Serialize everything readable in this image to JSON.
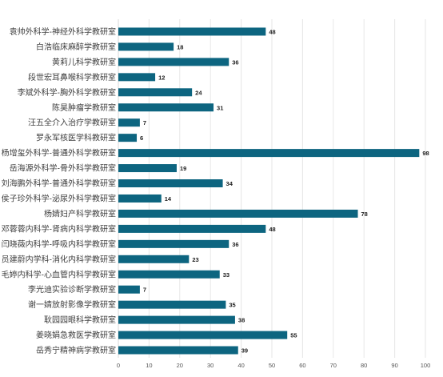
{
  "chart_data": {
    "type": "bar",
    "orientation": "horizontal",
    "categories": [
      "袁帅外科学-神经外科学教研室",
      "白浩临床麻醉学教研室",
      "黄莉儿科学教研室",
      "段世宏耳鼻喉科学教研室",
      "李斌外科学-胸外科学教研室",
      "陈昊肿瘤学教研室",
      "汪五全介入治疗学教研室",
      "罗永军核医学科教研室",
      "杨增玺外科学-普通外科学教研室",
      "岳海源外科学-骨外科学教研室",
      "刘海鹏外科学-普通外科学教研室",
      "侯子珍外科学-泌尿外科学教研室",
      "杨婧妇产科学教研室",
      "邓蓉蓉内科学-肾病内科学教研室",
      "闫晓薇内科学-呼吸内科学教研室",
      "员建蔚内学科-消化内科学教研室",
      "毛婷内科学-心血管内科学教研室",
      "李光迪实验诊断学教研室",
      "谢一婧放射影像学教研室",
      "耿园园眼科学教研室",
      "姜晓娟急救医学教研室",
      "岳秀宁精神病学教研室"
    ],
    "values": [
      48,
      18,
      36,
      12,
      24,
      31,
      7,
      6,
      98,
      19,
      34,
      14,
      78,
      48,
      36,
      23,
      33,
      7,
      35,
      38,
      55,
      39
    ],
    "xlim": [
      0,
      100
    ],
    "xticks": [
      0,
      10,
      20,
      30,
      40,
      50,
      60,
      70,
      80,
      90,
      100
    ],
    "bar_color": "#0d6580",
    "grid": true,
    "title": "",
    "xlabel": "",
    "ylabel": ""
  }
}
